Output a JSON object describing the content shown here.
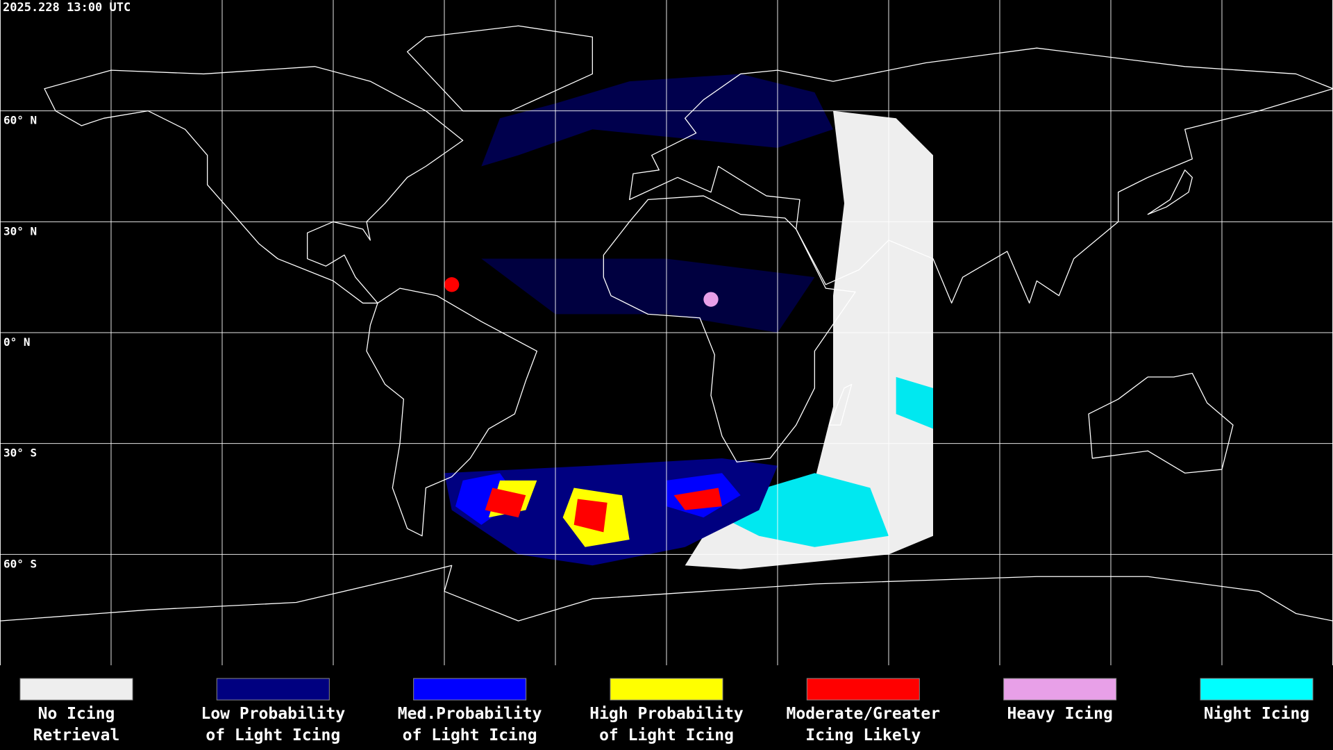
{
  "header": {
    "timestamp": "2025.228 13:00 UTC"
  },
  "latitude_labels": [
    "60° N",
    "30° N",
    "0° N",
    "30° S",
    "60° S"
  ],
  "legend": {
    "items": [
      {
        "lines": [
          "No Icing",
          "Retrieval"
        ],
        "color": "#eeeeee"
      },
      {
        "lines": [
          "Low Probability",
          "of Light Icing"
        ],
        "color": "#000080"
      },
      {
        "lines": [
          "Med.Probability",
          "of Light Icing"
        ],
        "color": "#0000ff"
      },
      {
        "lines": [
          "High Probability",
          "of Light Icing"
        ],
        "color": "#ffff00"
      },
      {
        "lines": [
          "Moderate/Greater",
          "Icing Likely"
        ],
        "color": "#ff0000"
      },
      {
        "lines": [
          "Heavy Icing"
        ],
        "color": "#e8a0e8"
      },
      {
        "lines": [
          "Night Icing"
        ],
        "color": "#00ffff"
      }
    ]
  }
}
